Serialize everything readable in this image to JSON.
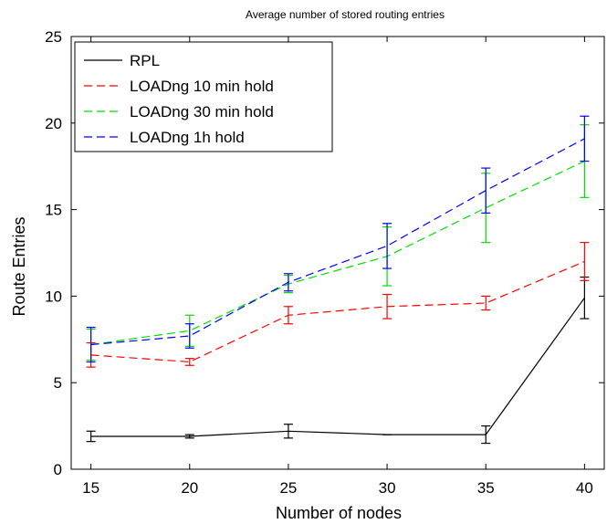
{
  "chart_data": {
    "type": "line",
    "title": "Average number of stored routing entries",
    "xlabel": "Number of nodes",
    "ylabel": "Route Entries",
    "x": [
      15,
      20,
      25,
      30,
      35,
      40
    ],
    "xlim": [
      14,
      41
    ],
    "ylim": [
      0,
      25
    ],
    "xticks": [
      15,
      20,
      25,
      30,
      35,
      40
    ],
    "yticks": [
      0,
      5,
      10,
      15,
      20,
      25
    ],
    "grid": false,
    "legend_position": "top-left",
    "series": [
      {
        "name": "RPL",
        "color": "#000000",
        "dash": "solid",
        "values": [
          1.9,
          1.9,
          2.2,
          2.0,
          2.0,
          9.9
        ],
        "err": [
          0.3,
          0.1,
          0.4,
          0.0,
          0.5,
          1.2
        ]
      },
      {
        "name": "LOADng 10 min hold",
        "color": "#ff0000",
        "dash": "dashed",
        "values": [
          6.6,
          6.2,
          8.9,
          9.4,
          9.6,
          12.0
        ],
        "err": [
          0.7,
          0.2,
          0.5,
          0.7,
          0.4,
          1.1
        ]
      },
      {
        "name": "LOADng 30 min hold",
        "color": "#00dd00",
        "dash": "dashed",
        "values": [
          7.2,
          8.0,
          10.7,
          12.3,
          15.1,
          17.8
        ],
        "err": [
          0.9,
          0.9,
          0.5,
          1.7,
          2.0,
          2.1
        ]
      },
      {
        "name": "LOADng 1h hold",
        "color": "#0000ff",
        "dash": "dashed",
        "values": [
          7.2,
          7.7,
          10.8,
          12.9,
          16.1,
          19.1
        ],
        "err": [
          1.0,
          0.7,
          0.5,
          1.3,
          1.3,
          1.3
        ]
      }
    ]
  }
}
